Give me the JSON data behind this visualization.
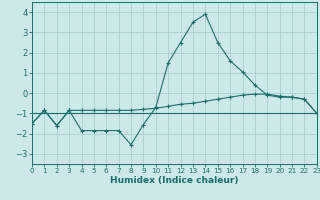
{
  "xlabel": "Humidex (Indice chaleur)",
  "xlim": [
    0,
    23
  ],
  "ylim": [
    -3.5,
    4.5
  ],
  "yticks": [
    -3,
    -2,
    -1,
    0,
    1,
    2,
    3,
    4
  ],
  "xticks": [
    0,
    1,
    2,
    3,
    4,
    5,
    6,
    7,
    8,
    9,
    10,
    11,
    12,
    13,
    14,
    15,
    16,
    17,
    18,
    19,
    20,
    21,
    22,
    23
  ],
  "bg_color": "#cde8e8",
  "grid_color": "#aad0ce",
  "line_color": "#1a6e6a",
  "curve1_x": [
    0,
    1,
    2,
    3,
    4,
    5,
    6,
    7,
    8,
    9,
    10,
    11,
    12,
    13,
    14,
    15,
    16,
    17,
    18,
    19,
    20,
    21,
    22,
    23
  ],
  "curve1_y": [
    -1.5,
    -0.85,
    -1.6,
    -0.85,
    -1.85,
    -1.85,
    -1.85,
    -1.85,
    -2.55,
    -1.55,
    -0.7,
    1.5,
    2.5,
    3.5,
    3.9,
    2.5,
    1.6,
    1.05,
    0.4,
    -0.1,
    -0.2,
    -0.2,
    -0.3,
    -1.0
  ],
  "curve2_x": [
    0,
    1,
    2,
    3,
    4,
    5,
    6,
    7,
    8,
    9,
    10,
    11,
    12,
    13,
    14,
    15,
    16,
    17,
    18,
    19,
    20,
    21,
    22,
    23
  ],
  "curve2_y": [
    -1.5,
    -0.85,
    -1.6,
    -0.85,
    -0.85,
    -0.85,
    -0.85,
    -0.85,
    -0.85,
    -0.8,
    -0.75,
    -0.65,
    -0.55,
    -0.5,
    -0.4,
    -0.3,
    -0.2,
    -0.1,
    -0.05,
    -0.05,
    -0.15,
    -0.2,
    -0.3,
    -1.0
  ],
  "line3_x": [
    0,
    23
  ],
  "line3_y": [
    -1.0,
    -1.0
  ]
}
